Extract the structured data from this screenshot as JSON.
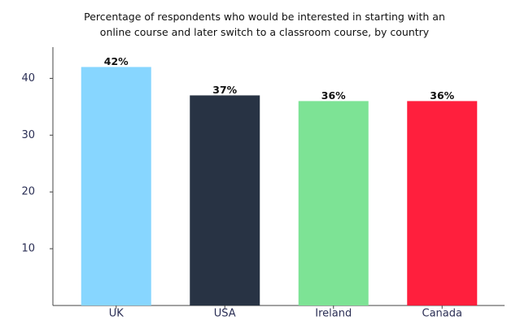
{
  "chart_data": {
    "type": "bar",
    "title": "Percentage of respondents who would be interested in starting with an online course and later switch to a classroom course, by country",
    "categories": [
      "UK",
      "USA",
      "Ireland",
      "Canada"
    ],
    "values": [
      42,
      37,
      36,
      36
    ],
    "value_labels": [
      "42%",
      "37%",
      "36%",
      "36%"
    ],
    "colors": [
      "#87d6ff",
      "#283344",
      "#7de395",
      "#ff1f3d"
    ],
    "ylim": [
      0,
      45.5
    ],
    "yticks": [
      10,
      20,
      30,
      40
    ],
    "grid": false
  }
}
